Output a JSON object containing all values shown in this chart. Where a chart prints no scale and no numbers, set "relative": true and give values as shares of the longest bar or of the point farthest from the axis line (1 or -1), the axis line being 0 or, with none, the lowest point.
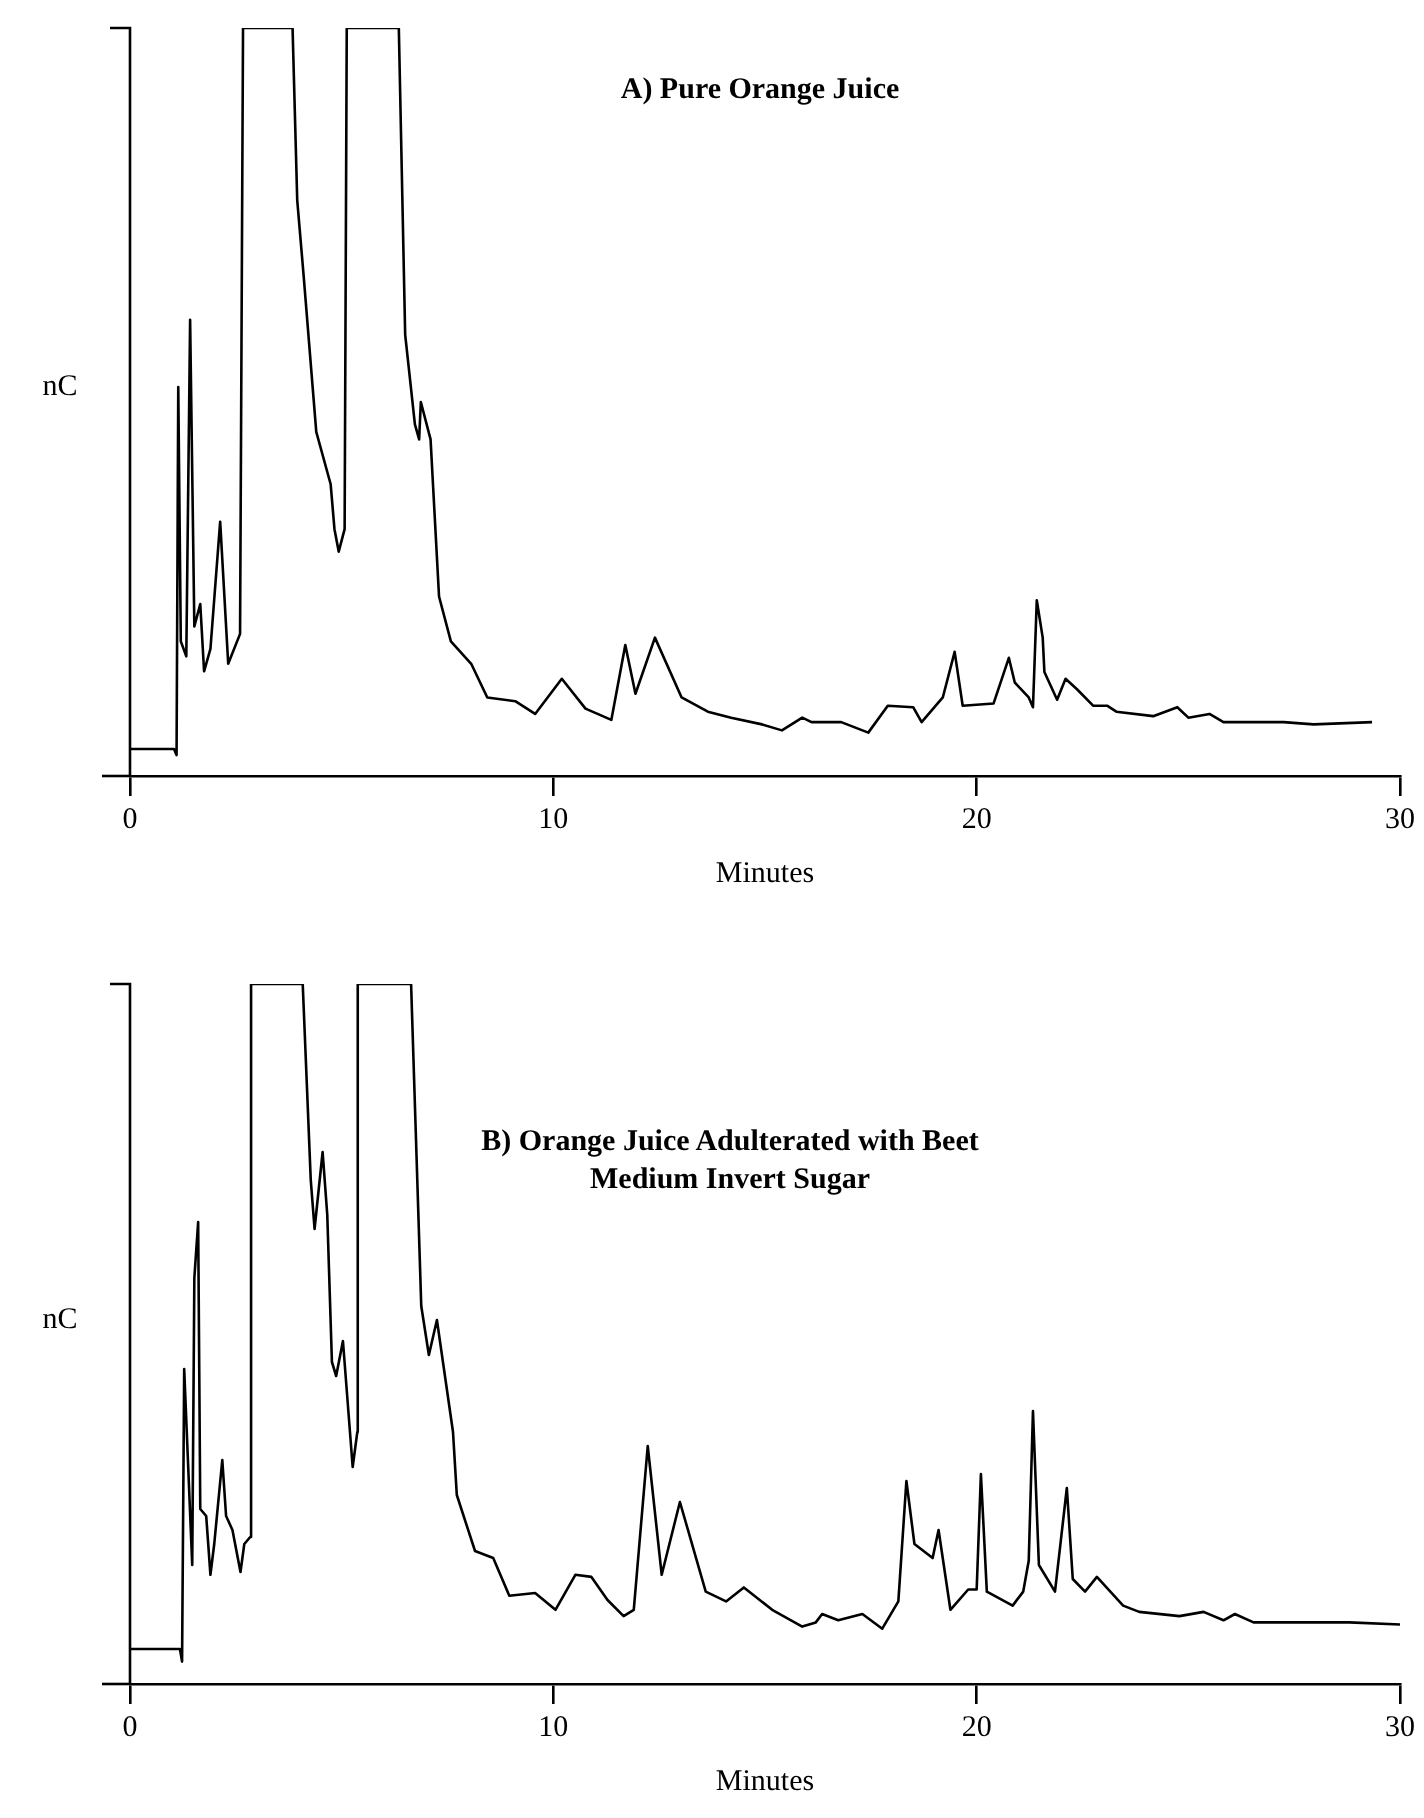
{
  "chart_data": [
    {
      "type": "line",
      "title": "A) Pure Orange Juice",
      "xlabel": "Minutes",
      "ylabel": "nC",
      "relative": true,
      "xlim": [
        0,
        30
      ],
      "xticks": [
        0,
        10,
        20,
        30
      ],
      "color": "#000000",
      "x": [
        0,
        1.04,
        1.1,
        1.14,
        1.2,
        1.33,
        1.42,
        1.52,
        1.66,
        1.75,
        1.9,
        2.13,
        2.32,
        2.6,
        2.67,
        3.84,
        3.95,
        4.1,
        4.4,
        4.74,
        4.83,
        4.93,
        5.07,
        5.12,
        6.35,
        6.5,
        6.73,
        6.83,
        6.87,
        7.1,
        7.3,
        7.58,
        8.06,
        8.44,
        9.1,
        9.57,
        10.2,
        10.76,
        11.37,
        11.7,
        11.94,
        12.4,
        13.03,
        13.65,
        14.2,
        14.93,
        15.4,
        15.88,
        16.1,
        16.8,
        17.44,
        17.9,
        18.5,
        18.7,
        19.2,
        19.48,
        19.67,
        20.4,
        20.76,
        20.9,
        21.23,
        21.33,
        21.42,
        21.56,
        21.6,
        21.9,
        22.1,
        22.37,
        22.75,
        23.08,
        23.3,
        24.17,
        24.74,
        25,
        25.5,
        25.83,
        27.25,
        27.96,
        29.34
      ],
      "values": [
        0.036,
        0.036,
        0.028,
        0.52,
        0.18,
        0.16,
        0.61,
        0.2,
        0.23,
        0.14,
        0.17,
        0.34,
        0.15,
        0.19,
        1,
        1,
        0.77,
        0.67,
        0.46,
        0.39,
        0.33,
        0.3,
        0.33,
        1,
        1,
        0.59,
        0.47,
        0.45,
        0.5,
        0.45,
        0.24,
        0.18,
        0.15,
        0.105,
        0.1,
        0.083,
        0.13,
        0.09,
        0.075,
        0.175,
        0.11,
        0.185,
        0.105,
        0.086,
        0.078,
        0.069,
        0.061,
        0.078,
        0.072,
        0.072,
        0.058,
        0.094,
        0.092,
        0.072,
        0.105,
        0.166,
        0.094,
        0.097,
        0.158,
        0.125,
        0.105,
        0.092,
        0.235,
        0.185,
        0.139,
        0.102,
        0.13,
        0.116,
        0.094,
        0.094,
        0.086,
        0.08,
        0.092,
        0.078,
        0.083,
        0.072,
        0.072,
        0.069,
        0.072
      ]
    },
    {
      "type": "line",
      "title": "B) Orange Juice Adulterated with Beet Medium Invert Sugar",
      "xlabel": "Minutes",
      "ylabel": "nC",
      "relative": true,
      "xlim": [
        0,
        30
      ],
      "xticks": [
        0,
        10,
        20,
        30
      ],
      "color": "#000000",
      "x": [
        0,
        1.18,
        1.23,
        1.28,
        1.47,
        1.52,
        1.61,
        1.66,
        1.8,
        1.9,
        1.99,
        2.18,
        2.27,
        2.42,
        2.61,
        2.7,
        2.84,
        2.86,
        4.08,
        4.27,
        4.36,
        4.55,
        4.66,
        4.77,
        4.87,
        5.03,
        5.26,
        5.37,
        5.38,
        6.64,
        6.88,
        7.06,
        7.25,
        7.63,
        7.72,
        8.15,
        8.58,
        8.96,
        9.57,
        10.05,
        10.52,
        10.9,
        11.28,
        11.66,
        11.9,
        12.23,
        12.56,
        12.99,
        13.6,
        14.08,
        14.5,
        15.17,
        15.88,
        16.2,
        16.35,
        16.73,
        17.3,
        17.77,
        18.15,
        18.34,
        18.53,
        18.96,
        19.1,
        19.38,
        19.8,
        20,
        20.1,
        20.24,
        20.85,
        21.1,
        21.23,
        21.33,
        21.47,
        21.85,
        22.13,
        22.27,
        22.56,
        22.84,
        23.46,
        23.84,
        24.79,
        25.36,
        25.83,
        26.1,
        26.54,
        27.73,
        28.8,
        30
      ],
      "values": [
        0.05,
        0.05,
        0.032,
        0.45,
        0.17,
        0.58,
        0.66,
        0.25,
        0.24,
        0.156,
        0.2,
        0.32,
        0.24,
        0.22,
        0.16,
        0.2,
        0.21,
        1,
        1,
        0.72,
        0.65,
        0.76,
        0.67,
        0.46,
        0.44,
        0.49,
        0.31,
        0.36,
        1,
        1,
        0.54,
        0.47,
        0.52,
        0.36,
        0.27,
        0.19,
        0.18,
        0.126,
        0.13,
        0.106,
        0.156,
        0.153,
        0.12,
        0.097,
        0.106,
        0.34,
        0.156,
        0.26,
        0.132,
        0.118,
        0.138,
        0.106,
        0.082,
        0.088,
        0.1,
        0.091,
        0.1,
        0.079,
        0.118,
        0.29,
        0.2,
        0.18,
        0.22,
        0.106,
        0.135,
        0.135,
        0.3,
        0.132,
        0.112,
        0.132,
        0.176,
        0.39,
        0.17,
        0.132,
        0.28,
        0.15,
        0.132,
        0.153,
        0.112,
        0.103,
        0.097,
        0.103,
        0.091,
        0.1,
        0.088,
        0.088,
        0.088,
        0.085
      ]
    }
  ]
}
